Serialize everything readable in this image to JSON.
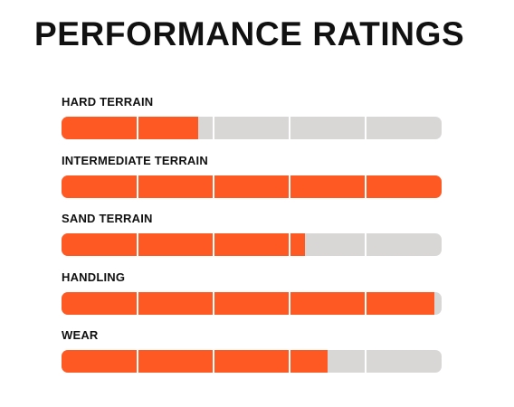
{
  "page": {
    "title": "PERFORMANCE RATINGS"
  },
  "colors": {
    "fill": "#fe5923",
    "track": "#d9d6d6",
    "divider": "#ffffff",
    "text": "#111111"
  },
  "segments_per_bar": 5,
  "ratings": [
    {
      "label": "HARD TERRAIN",
      "level": 0.36
    },
    {
      "label": "INTERMEDIATE TERRAIN",
      "level": 1.0
    },
    {
      "label": "SAND TERRAIN",
      "level": 0.64
    },
    {
      "label": "HANDLING",
      "level": 0.98
    },
    {
      "label": "WEAR",
      "level": 0.7
    }
  ]
}
